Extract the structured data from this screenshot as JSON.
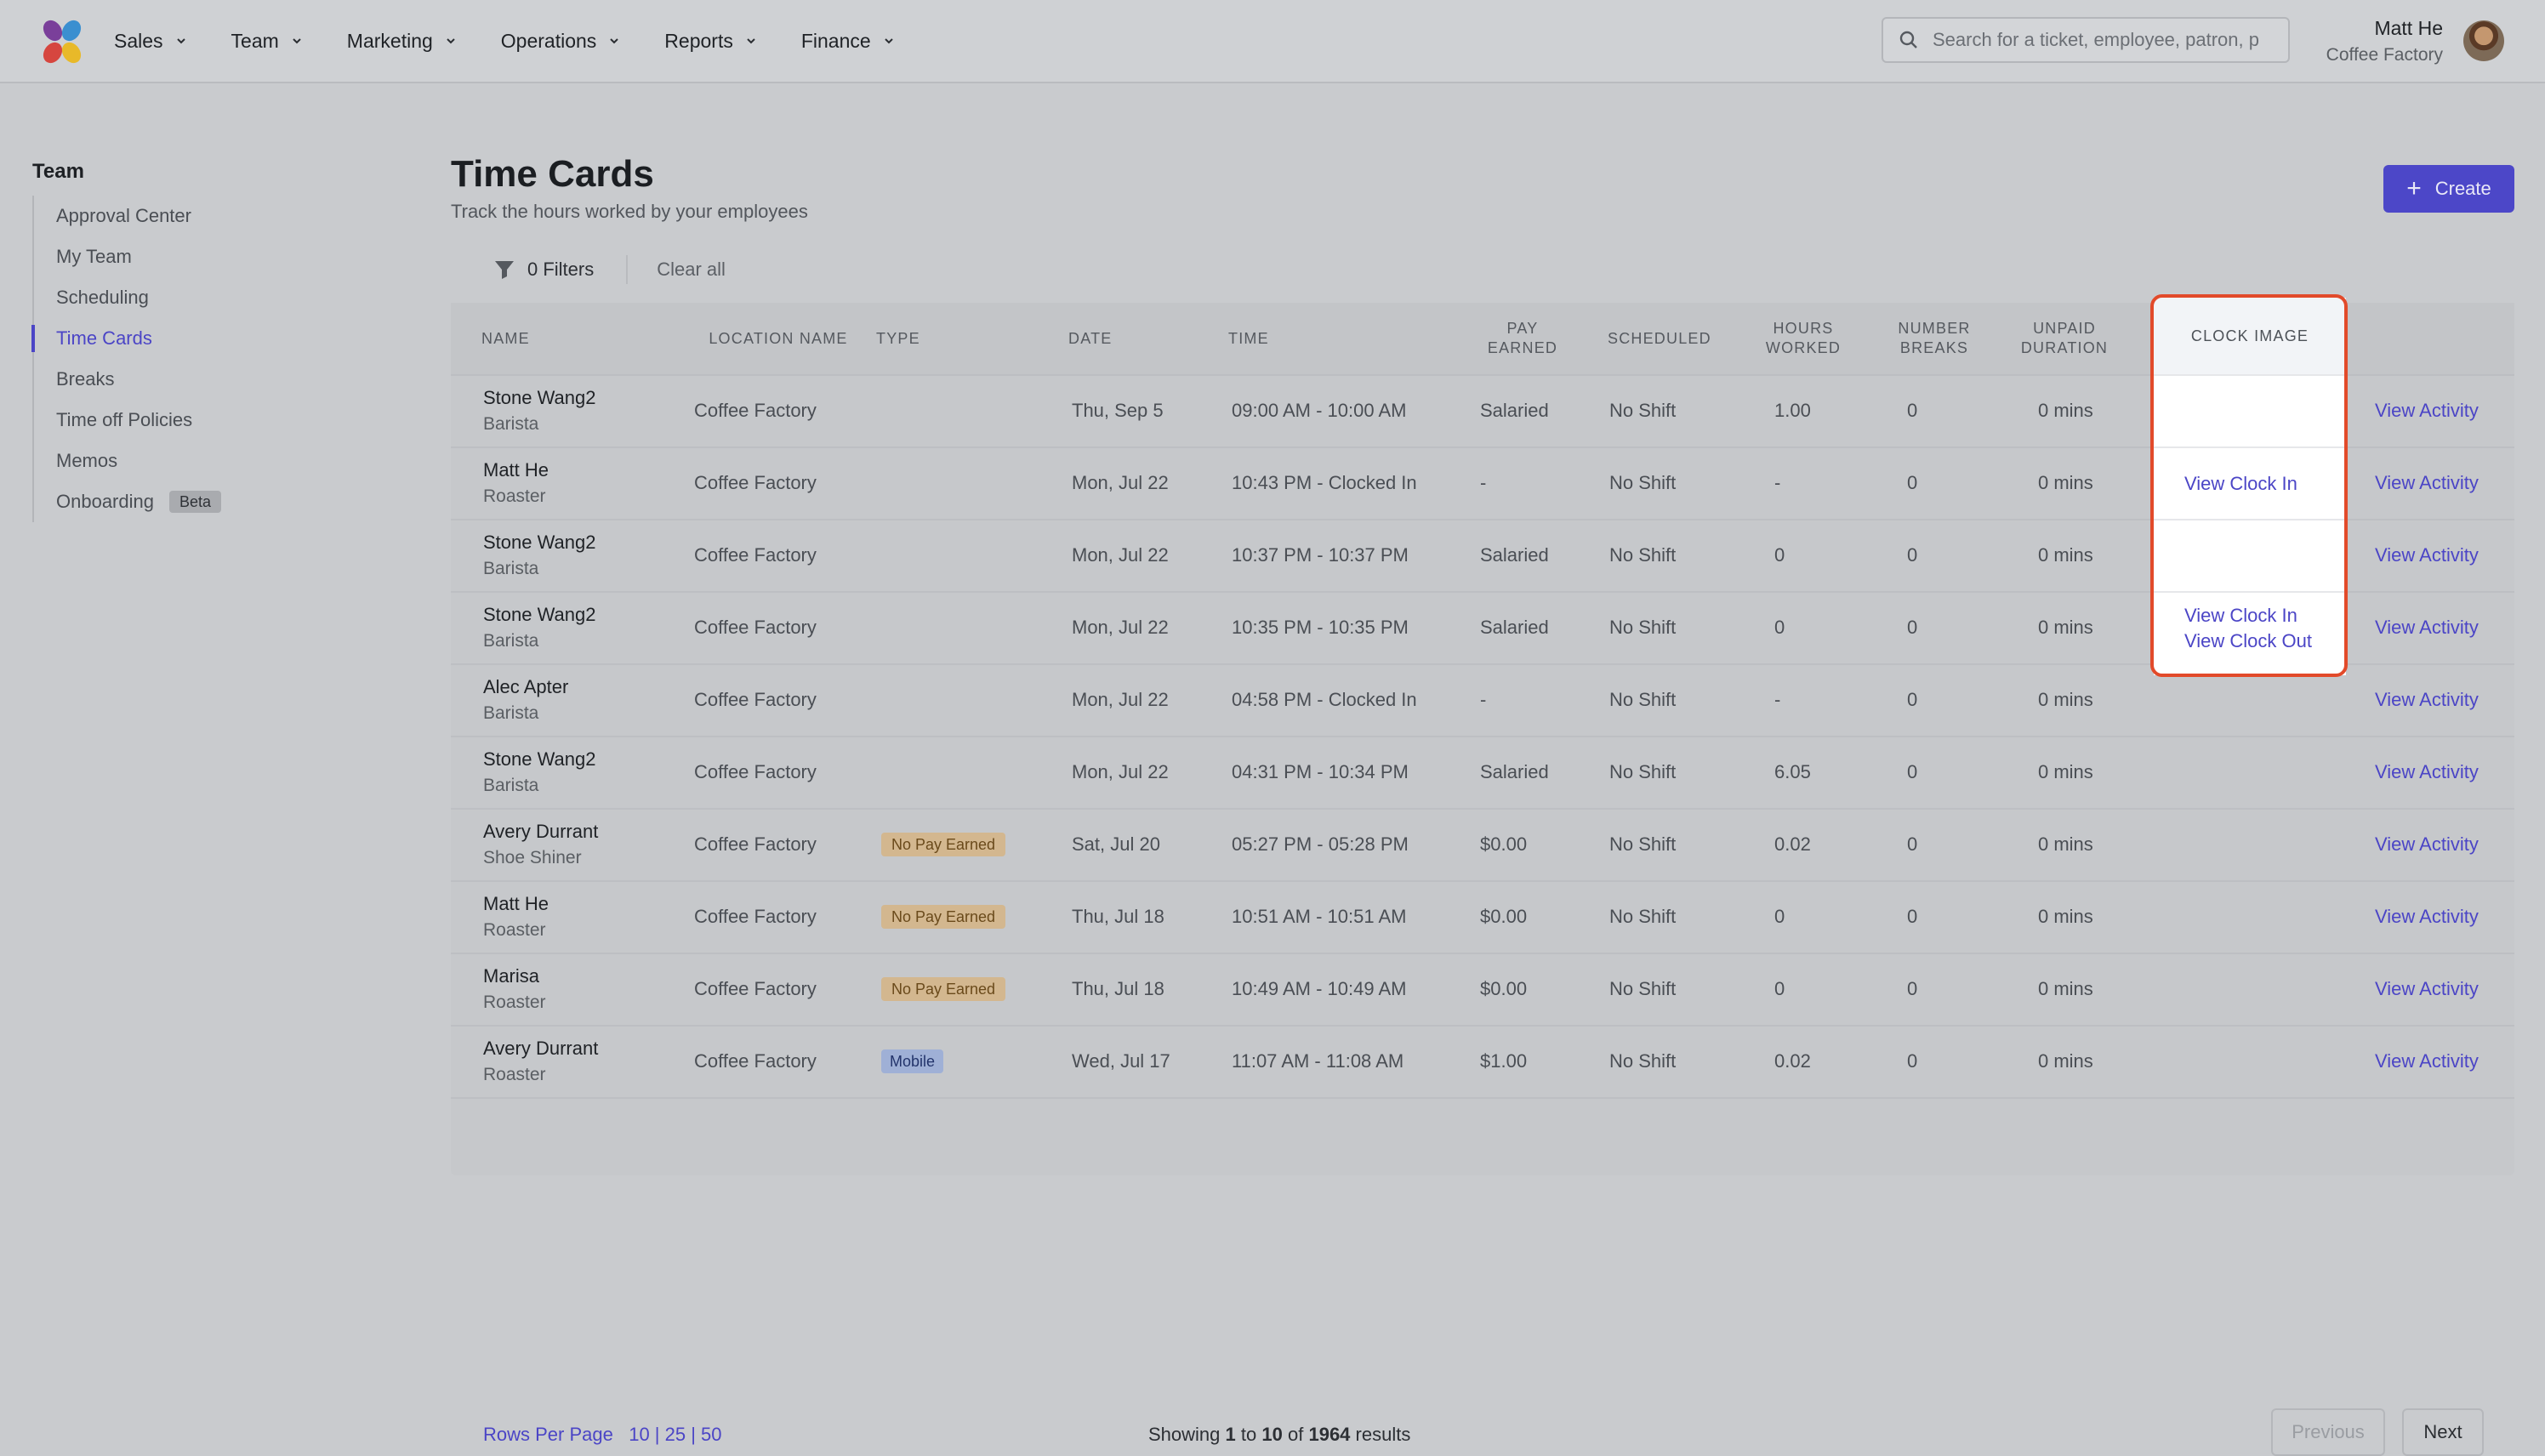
{
  "nav": {
    "items": [
      {
        "label": "Sales"
      },
      {
        "label": "Team"
      },
      {
        "label": "Marketing"
      },
      {
        "label": "Operations"
      },
      {
        "label": "Reports"
      },
      {
        "label": "Finance"
      }
    ],
    "search_placeholder": "Search for a ticket, employee, patron, p",
    "user_name": "Matt He",
    "user_org": "Coffee Factory"
  },
  "sidebar": {
    "title": "Team",
    "items": [
      {
        "label": "Approval Center"
      },
      {
        "label": "My Team"
      },
      {
        "label": "Scheduling"
      },
      {
        "label": "Time Cards",
        "active": true
      },
      {
        "label": "Breaks"
      },
      {
        "label": "Time off Policies"
      },
      {
        "label": "Memos"
      },
      {
        "label": "Onboarding",
        "badge": "Beta"
      }
    ]
  },
  "header": {
    "title": "Time Cards",
    "subtitle": "Track the hours worked by your employees",
    "create_label": "Create"
  },
  "filters": {
    "count_label": "0 Filters",
    "clear_label": "Clear all"
  },
  "table": {
    "columns": {
      "name": "Name",
      "location": "Location Name",
      "type": "Type",
      "date": "Date",
      "time": "Time",
      "pay": "Pay Earned",
      "scheduled": "Scheduled",
      "hours": "Hours Worked",
      "breaks": "Number Breaks",
      "unpaid": "Unpaid Duration",
      "clock": "Clock Image"
    },
    "rows": [
      {
        "name": "Stone Wang2",
        "role": "Barista",
        "location": "Coffee Factory",
        "type": "",
        "date": "Thu, Sep 5",
        "time": "09:00 AM - 10:00 AM",
        "pay": "Salaried",
        "scheduled": "No Shift",
        "hours": "1.00",
        "breaks": "0",
        "unpaid": "0 mins",
        "clock": [],
        "action": "View Activity"
      },
      {
        "name": "Matt He",
        "role": "Roaster",
        "location": "Coffee Factory",
        "type": "",
        "date": "Mon, Jul 22",
        "time": "10:43 PM - Clocked In",
        "pay": "-",
        "scheduled": "No Shift",
        "hours": "-",
        "breaks": "0",
        "unpaid": "0 mins",
        "clock": [
          "View Clock In"
        ],
        "action": "View Activity"
      },
      {
        "name": "Stone Wang2",
        "role": "Barista",
        "location": "Coffee Factory",
        "type": "",
        "date": "Mon, Jul 22",
        "time": "10:37 PM - 10:37 PM",
        "pay": "Salaried",
        "scheduled": "No Shift",
        "hours": "0",
        "breaks": "0",
        "unpaid": "0 mins",
        "clock": [],
        "action": "View Activity"
      },
      {
        "name": "Stone Wang2",
        "role": "Barista",
        "location": "Coffee Factory",
        "type": "",
        "date": "Mon, Jul 22",
        "time": "10:35 PM - 10:35 PM",
        "pay": "Salaried",
        "scheduled": "No Shift",
        "hours": "0",
        "breaks": "0",
        "unpaid": "0 mins",
        "clock": [
          "View Clock In",
          "View Clock Out"
        ],
        "action": "View Activity"
      },
      {
        "name": "Alec Apter",
        "role": "Barista",
        "location": "Coffee Factory",
        "type": "",
        "date": "Mon, Jul 22",
        "time": "04:58 PM - Clocked In",
        "pay": "-",
        "scheduled": "No Shift",
        "hours": "-",
        "breaks": "0",
        "unpaid": "0 mins",
        "clock": [],
        "action": "View Activity"
      },
      {
        "name": "Stone Wang2",
        "role": "Barista",
        "location": "Coffee Factory",
        "type": "",
        "date": "Mon, Jul 22",
        "time": "04:31 PM - 10:34 PM",
        "pay": "Salaried",
        "scheduled": "No Shift",
        "hours": "6.05",
        "breaks": "0",
        "unpaid": "0 mins",
        "clock": [],
        "action": "View Activity"
      },
      {
        "name": "Avery Durrant",
        "role": "Shoe Shiner",
        "location": "Coffee Factory",
        "type": "No Pay Earned",
        "date": "Sat, Jul 20",
        "time": "05:27 PM - 05:28 PM",
        "pay": "$0.00",
        "scheduled": "No Shift",
        "hours": "0.02",
        "breaks": "0",
        "unpaid": "0 mins",
        "clock": [],
        "action": "View Activity"
      },
      {
        "name": "Matt He",
        "role": "Roaster",
        "location": "Coffee Factory",
        "type": "No Pay Earned",
        "date": "Thu, Jul 18",
        "time": "10:51 AM - 10:51 AM",
        "pay": "$0.00",
        "scheduled": "No Shift",
        "hours": "0",
        "breaks": "0",
        "unpaid": "0 mins",
        "clock": [],
        "action": "View Activity"
      },
      {
        "name": "Marisa",
        "role": "Roaster",
        "location": "Coffee Factory",
        "type": "No Pay Earned",
        "date": "Thu, Jul 18",
        "time": "10:49 AM - 10:49 AM",
        "pay": "$0.00",
        "scheduled": "No Shift",
        "hours": "0",
        "breaks": "0",
        "unpaid": "0 mins",
        "clock": [],
        "action": "View Activity"
      },
      {
        "name": "Avery Durrant",
        "role": "Roaster",
        "location": "Coffee Factory",
        "type": "Mobile",
        "date": "Wed, Jul 17",
        "time": "11:07 AM - 11:08 AM",
        "pay": "$1.00",
        "scheduled": "No Shift",
        "hours": "0.02",
        "breaks": "0",
        "unpaid": "0 mins",
        "clock": [],
        "action": "View Activity"
      }
    ]
  },
  "footer": {
    "rows_per_page_label": "Rows Per Page",
    "rows_options": "10 | 25 | 50",
    "showing_prefix": "Showing",
    "range_start": "1",
    "range_to": "to",
    "range_end": "10",
    "of": "of",
    "total": "1964",
    "results": "results",
    "previous_label": "Previous",
    "next_label": "Next"
  },
  "colors": {
    "accent": "#4b45c6",
    "highlight_frame": "#e24a2a",
    "no_pay_badge": "#d3b78f",
    "mobile_badge": "#9fb0d6"
  }
}
